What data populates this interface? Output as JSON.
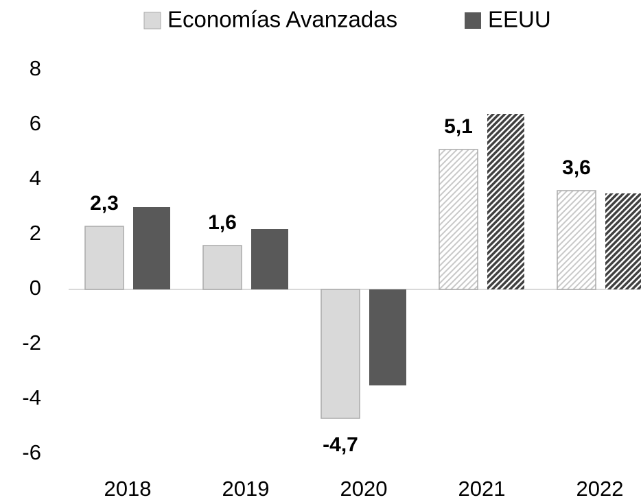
{
  "chart_data": {
    "type": "bar",
    "categories": [
      "2018",
      "2019",
      "2020",
      "2021",
      "2022"
    ],
    "series": [
      {
        "name": "Economías Avanzadas",
        "color": "#d9d9d9",
        "values": [
          2.3,
          1.6,
          -4.7,
          5.1,
          3.6
        ],
        "value_labels": [
          "2,3",
          "1,6",
          "-4,7",
          "5,1",
          "3,6"
        ],
        "hatched": [
          false,
          false,
          false,
          true,
          true
        ]
      },
      {
        "name": "EEUU",
        "color": "#595959",
        "values": [
          3.0,
          2.2,
          -3.5,
          6.4,
          3.5
        ],
        "hatched": [
          false,
          false,
          false,
          true,
          true
        ]
      }
    ],
    "ylim": [
      -6,
      8
    ],
    "yticks": [
      -6,
      -4,
      -2,
      0,
      2,
      4,
      6,
      8
    ],
    "grid": false,
    "legend": "top"
  }
}
